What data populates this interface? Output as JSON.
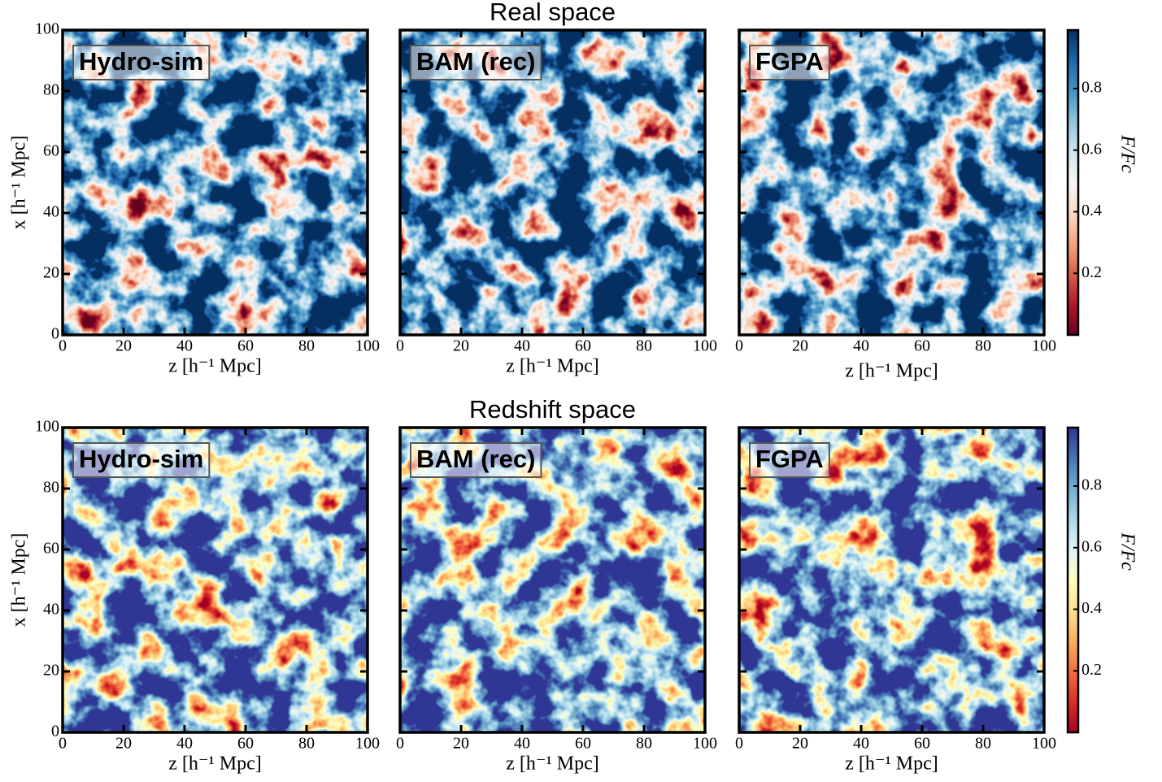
{
  "chart_data": [
    {
      "type": "image",
      "label": "Hydro-sim",
      "xlabel": "z [h⁻¹ Mpc]",
      "ylabel": "x [h⁻¹ Mpc]",
      "xlim": [
        0,
        100
      ],
      "ylim": [
        0,
        100
      ],
      "xticks": [
        0,
        20,
        40,
        60,
        80,
        100
      ],
      "yticks": [
        0,
        20,
        40,
        60,
        80,
        100
      ],
      "colormap": "RdBu"
    },
    {
      "type": "image",
      "title": "Real space",
      "label": "BAM (rec)",
      "xlabel": "z [h⁻¹ Mpc]",
      "xlim": [
        0,
        100
      ],
      "ylim": [
        0,
        100
      ],
      "xticks": [
        0,
        20,
        40,
        60,
        80,
        100
      ],
      "colormap": "RdBu"
    },
    {
      "type": "image",
      "label": "FGPA",
      "xlabel": "z [h⁻¹ Mpc]",
      "xlim": [
        0,
        100
      ],
      "ylim": [
        0,
        100
      ],
      "xticks": [
        0,
        20,
        40,
        60,
        80,
        100
      ],
      "colormap": "RdBu"
    },
    {
      "type": "image",
      "label": "Hydro-sim",
      "xlabel": "z [h⁻¹ Mpc]",
      "ylabel": "x [h⁻¹ Mpc]",
      "xlim": [
        0,
        100
      ],
      "ylim": [
        0,
        100
      ],
      "xticks": [
        0,
        20,
        40,
        60,
        80,
        100
      ],
      "yticks": [
        0,
        20,
        40,
        60,
        80,
        100
      ],
      "colormap": "RdYlBu"
    },
    {
      "type": "image",
      "title": "Redshift space",
      "label": "BAM (rec)",
      "xlabel": "z [h⁻¹ Mpc]",
      "xlim": [
        0,
        100
      ],
      "ylim": [
        0,
        100
      ],
      "xticks": [
        0,
        20,
        40,
        60,
        80,
        100
      ],
      "colormap": "RdYlBu"
    },
    {
      "type": "image",
      "label": "FGPA",
      "xlabel": "z [h⁻¹ Mpc]",
      "xlim": [
        0,
        100
      ],
      "ylim": [
        0,
        100
      ],
      "xticks": [
        0,
        20,
        40,
        60,
        80,
        100
      ],
      "colormap": "RdYlBu"
    },
    {
      "type": "colorbar",
      "name": "RdBu",
      "ylabel": "F/Fc",
      "ylim": [
        0,
        0.99
      ],
      "yticks": [
        0.2,
        0.4,
        0.6,
        0.8
      ],
      "colors": [
        "#67001f",
        "#b2182b",
        "#d6604d",
        "#f4a582",
        "#fddbc7",
        "#f7f7f7",
        "#d1e5f0",
        "#92c5de",
        "#4393c3",
        "#2166ac",
        "#053061"
      ]
    },
    {
      "type": "colorbar",
      "name": "RdYlBu",
      "ylabel": "F/Fc",
      "ylim": [
        0,
        0.99
      ],
      "yticks": [
        0.2,
        0.4,
        0.6,
        0.8
      ],
      "colors": [
        "#a50026",
        "#d73027",
        "#f46d43",
        "#fdae61",
        "#fee090",
        "#ffffbf",
        "#e0f3f8",
        "#abd9e9",
        "#74add1",
        "#4575b4",
        "#313695"
      ]
    }
  ]
}
